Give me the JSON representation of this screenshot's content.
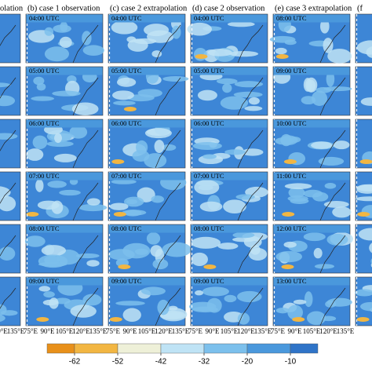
{
  "columns": [
    {
      "title": "olation",
      "times": []
    },
    {
      "title": "(b) case 1 observation",
      "times": [
        "04:00 UTC",
        "05:00 UTC",
        "06:00 UTC",
        "07:00 UTC",
        "08:00 UTC",
        "09:00 UTC"
      ]
    },
    {
      "title": "(c) case 2 extrapolation",
      "times": [
        "04:00 UTC",
        "05:00 UTC",
        "06:00 UTC",
        "07:00 UTC",
        "08:00 UTC",
        "09:00 UTC"
      ]
    },
    {
      "title": "(d) case 2 observation",
      "times": [
        "04:00 UTC",
        "05:00 UTC",
        "06:00 UTC",
        "07:00 UTC",
        "08:00 UTC",
        "09:00 UTC"
      ]
    },
    {
      "title": "(e) case 3 extrapolation",
      "times": [
        "08:00 UTC",
        "09:00 UTC",
        "10:00 UTC",
        "11:00 UTC",
        "12:00 UTC",
        "13:00 UTC"
      ]
    },
    {
      "title": "(f",
      "times": []
    }
  ],
  "lon_ticks": [
    "75°E",
    "90°E",
    "105°E",
    "120°E",
    "135°E"
  ],
  "colorbar": {
    "ticks": [
      -62,
      -52,
      -42,
      -32,
      -20,
      -10
    ],
    "colors": [
      "#e8901a",
      "#f2b642",
      "#eef0d8",
      "#bfe3f5",
      "#7cc0ec",
      "#4a98dc",
      "#2f74c8"
    ]
  }
}
